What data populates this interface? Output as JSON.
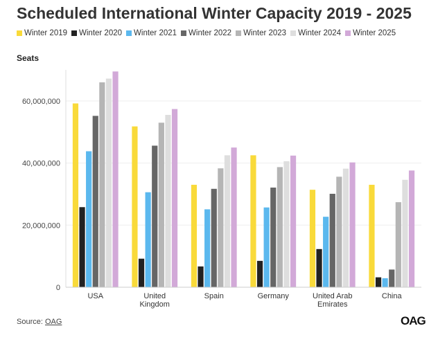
{
  "title": "Scheduled International Winter Capacity 2019 - 2025",
  "source_label": "Source: ",
  "source_link": "OAG",
  "logo_text": "OAG",
  "chart_data": {
    "type": "bar",
    "ylabel": "Seats",
    "ylim": [
      0,
      70000000
    ],
    "yticks": [
      0,
      20000000,
      40000000,
      60000000
    ],
    "ytick_labels": [
      "0",
      "20,000,000",
      "40,000,000",
      "60,000,000"
    ],
    "grid": true,
    "legend_position": "top",
    "categories": [
      [
        "USA"
      ],
      [
        "United",
        "Kingdom"
      ],
      [
        "Spain"
      ],
      [
        "Germany"
      ],
      [
        "United Arab",
        "Emirates"
      ],
      [
        "China"
      ]
    ],
    "series": [
      {
        "name": "Winter 2019",
        "color": "#F9DA3A",
        "values": [
          59200000,
          51800000,
          33000000,
          42500000,
          31400000,
          33000000
        ]
      },
      {
        "name": "Winter 2020",
        "color": "#222222",
        "values": [
          25800000,
          9200000,
          6700000,
          8500000,
          12300000,
          3200000
        ]
      },
      {
        "name": "Winter 2021",
        "color": "#5BB8EE",
        "values": [
          43800000,
          30600000,
          25100000,
          25700000,
          22700000,
          2900000
        ]
      },
      {
        "name": "Winter 2022",
        "color": "#666666",
        "values": [
          55200000,
          45600000,
          31700000,
          32100000,
          30100000,
          5700000
        ]
      },
      {
        "name": "Winter 2023",
        "color": "#B5B5B5",
        "values": [
          66000000,
          53000000,
          38300000,
          38700000,
          35600000,
          27400000
        ]
      },
      {
        "name": "Winter 2024",
        "color": "#DEDEDE",
        "values": [
          67200000,
          55500000,
          42500000,
          40600000,
          38200000,
          34600000
        ]
      },
      {
        "name": "Winter 2025",
        "color": "#D2A9D8",
        "values": [
          69500000,
          57400000,
          45000000,
          42400000,
          40200000,
          37600000
        ]
      }
    ]
  }
}
